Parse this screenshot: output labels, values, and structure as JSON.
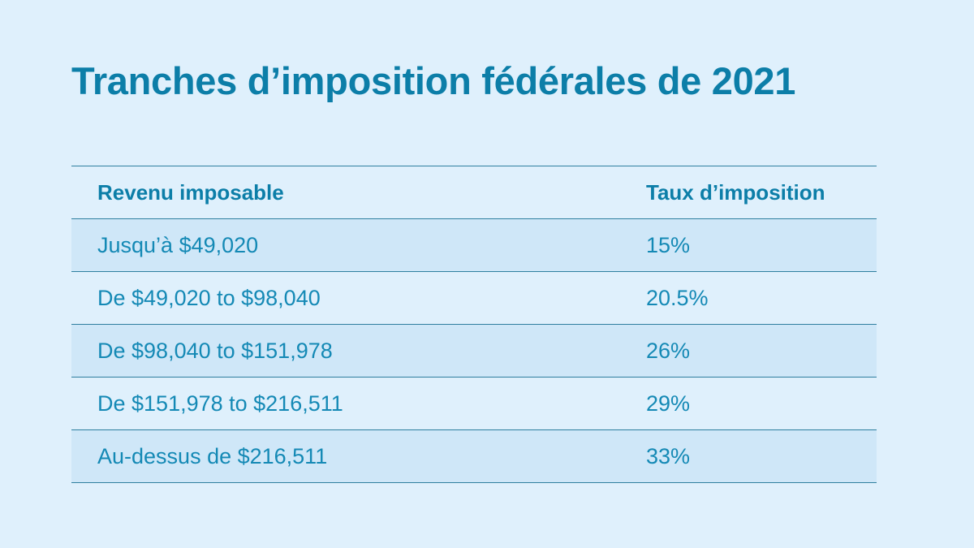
{
  "title": "Tranches d’imposition fédérales de 2021",
  "table": {
    "headers": {
      "income": "Revenu imposable",
      "rate": "Taux d’imposition"
    },
    "rows": [
      {
        "income": "Jusqu’à  $49,020",
        "rate": "15%"
      },
      {
        "income": "De $49,020 to $98,040",
        "rate": "20.5%"
      },
      {
        "income": "De $98,040 to $151,978",
        "rate": "26%"
      },
      {
        "income": "De $151,978 to $216,511",
        "rate": "29%"
      },
      {
        "income": "Au-dessus de $216,511",
        "rate": "33%"
      }
    ]
  },
  "colors": {
    "background": "#dff0fc",
    "accent": "#0c7ea8",
    "row_shade": "#cfe7f8"
  }
}
